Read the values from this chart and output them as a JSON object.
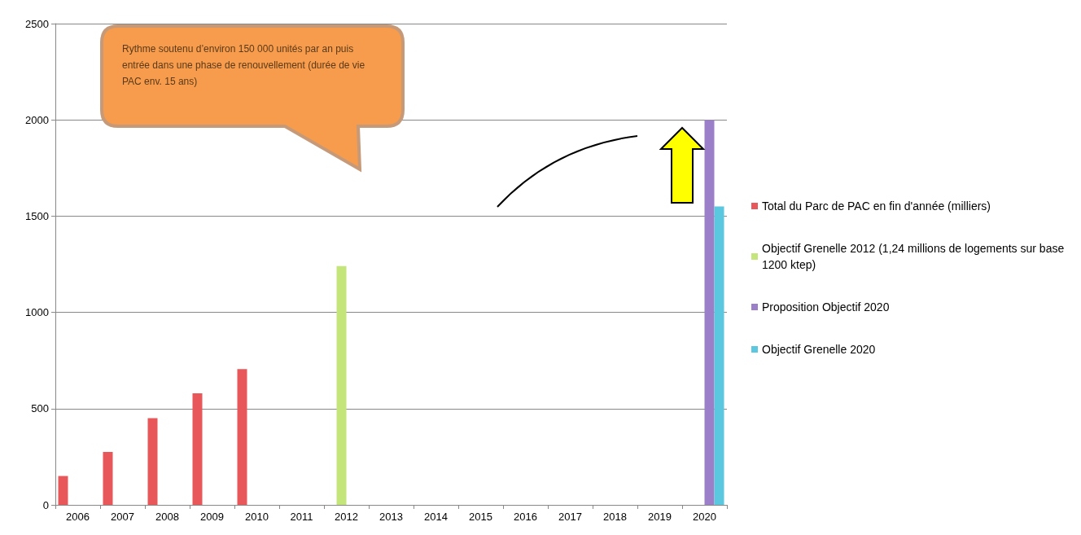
{
  "chart_data": {
    "type": "bar",
    "categories": [
      "2006",
      "2007",
      "2008",
      "2009",
      "2010",
      "2011",
      "2012",
      "2013",
      "2014",
      "2015",
      "2016",
      "2017",
      "2018",
      "2019",
      "2020"
    ],
    "series": [
      {
        "name": "Total du Parc de PAC en fin d'année (milliers)",
        "color": "#e8585a",
        "values": [
          150,
          275,
          450,
          580,
          705,
          null,
          null,
          null,
          null,
          null,
          null,
          null,
          null,
          null,
          null
        ]
      },
      {
        "name": "Objectif Grenelle 2012 (1,24 millions de logements sur base 1200 ktep)",
        "color": "#c4e57a",
        "values": [
          null,
          null,
          null,
          null,
          null,
          null,
          1240,
          null,
          null,
          null,
          null,
          null,
          null,
          null,
          null
        ]
      },
      {
        "name": "Proposition Objectif 2020",
        "color": "#9b7fc9",
        "values": [
          null,
          null,
          null,
          null,
          null,
          null,
          null,
          null,
          null,
          null,
          null,
          null,
          null,
          null,
          2000
        ]
      },
      {
        "name": "Objectif Grenelle 2020",
        "color": "#5cc8e0",
        "values": [
          null,
          null,
          null,
          null,
          null,
          null,
          null,
          null,
          null,
          null,
          null,
          null,
          null,
          null,
          1550
        ]
      }
    ],
    "ylim": [
      0,
      2500
    ],
    "yticks": [
      0,
      500,
      1000,
      1500,
      2000,
      2500
    ],
    "grid": "y",
    "legend": "right",
    "annotations": [
      "Rythme soutenu d’environ 150 000 unités par an puis entrée dans une phase de renouvellement (durée de vie PAC env. 15 ans)"
    ]
  }
}
